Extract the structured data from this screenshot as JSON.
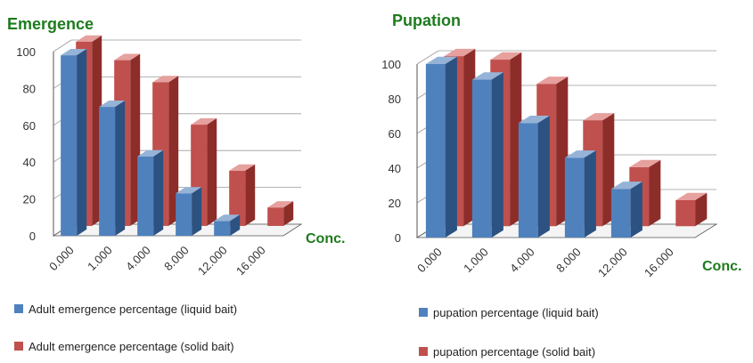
{
  "colors": {
    "blue_front": "#4f81bd",
    "blue_side": "#2c5282",
    "blue_top": "#95b3d7",
    "red_front": "#c0504d",
    "red_side": "#8c2d2a",
    "red_top": "#e6a09e",
    "title": "#1e7b1e",
    "axis": "#555555",
    "grid": "#9a9a9a"
  },
  "chart_data": [
    {
      "type": "bar",
      "title": "Emergence",
      "xlabel": "Conc.",
      "ylabel": "",
      "ylim": [
        0,
        100
      ],
      "yticks": [
        "0",
        "20",
        "40",
        "60",
        "80",
        "100"
      ],
      "categories": [
        "0.000",
        "1.000",
        "4.000",
        "8.000",
        "12.000",
        "16.000"
      ],
      "series": [
        {
          "name": "Adult emergence percentage (liquid bait)",
          "values": [
            98,
            70,
            43,
            23,
            8,
            0
          ]
        },
        {
          "name": "Adult emergence percentage (solid bait)",
          "values": [
            100,
            90,
            78,
            55,
            30,
            10
          ]
        }
      ],
      "legend_position": "bottom",
      "grid": true
    },
    {
      "type": "bar",
      "title": "Pupation",
      "xlabel": "Conc.",
      "ylabel": "",
      "ylim": [
        0,
        100
      ],
      "yticks": [
        "0",
        "20",
        "40",
        "60",
        "80",
        "100"
      ],
      "categories": [
        "0.000",
        "1.000",
        "4.000",
        "8.000",
        "12.000",
        "16.000"
      ],
      "series": [
        {
          "name": "pupation percentage (liquid bait)",
          "values": [
            100,
            91,
            66,
            46,
            28,
            0
          ]
        },
        {
          "name": "pupation percentage (solid bait)",
          "values": [
            98,
            96,
            82,
            61,
            34,
            15
          ]
        }
      ],
      "legend_position": "bottom",
      "grid": true
    }
  ]
}
